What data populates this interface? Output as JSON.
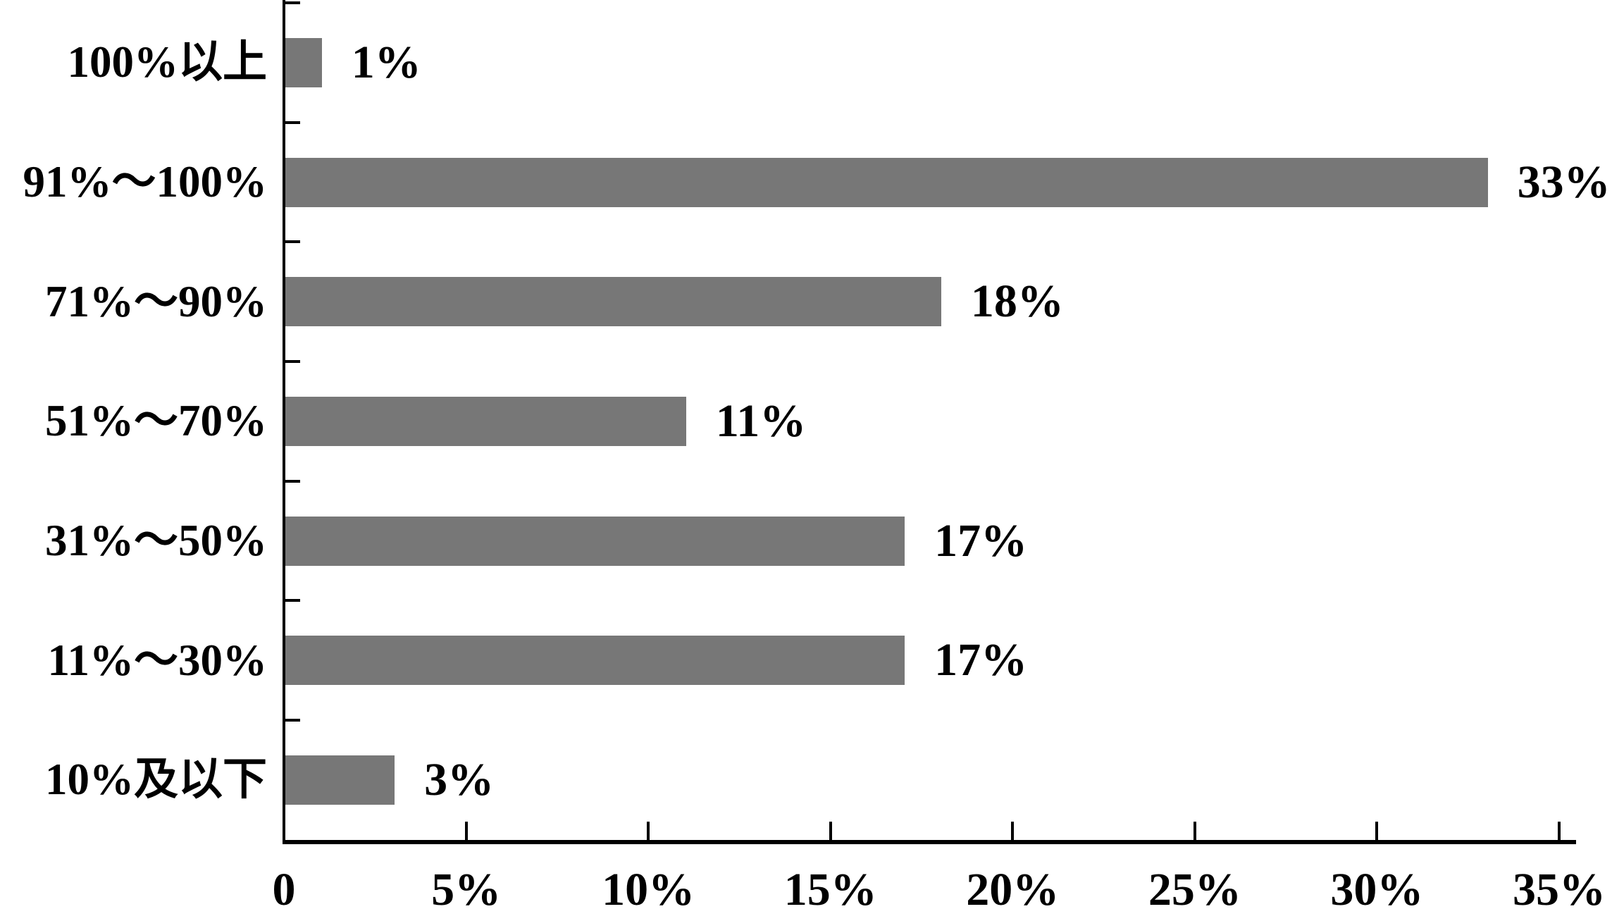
{
  "chart_data": {
    "type": "bar",
    "orientation": "horizontal",
    "title": "",
    "categories": [
      "100%以上",
      "91%～100%",
      "71%～90%",
      "51%～70%",
      "31%～50%",
      "11%～30%",
      "10%及以下"
    ],
    "values": [
      1,
      33,
      18,
      11,
      17,
      17,
      3
    ],
    "value_labels": [
      "1%",
      "33%",
      "18%",
      "11%",
      "17%",
      "17%",
      "3%"
    ],
    "x_tick_labels": [
      "0",
      "5%",
      "10%",
      "15%",
      "20%",
      "25%",
      "30%",
      "35%"
    ],
    "xlim": [
      0,
      35
    ],
    "xlabel": "",
    "ylabel": "",
    "grid": "off",
    "legend": "none",
    "bar_color": "#777777",
    "axis_color": "#000000",
    "background_color": "#ffffff"
  }
}
